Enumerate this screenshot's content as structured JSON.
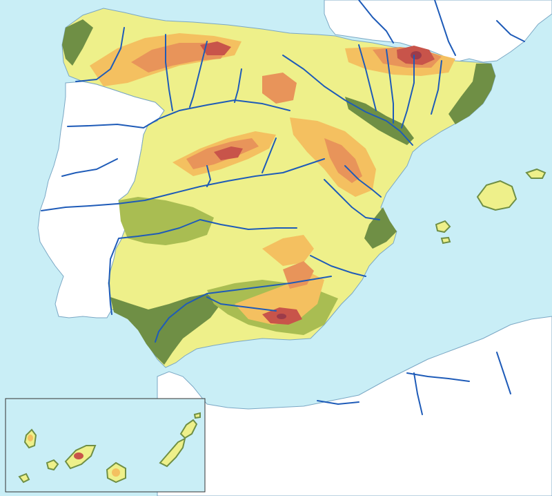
{
  "map": {
    "kind": "blank physical relief map",
    "colors": {
      "sea": "#c9eef6",
      "foreign_land": "#ffffff",
      "lowland": "#6f8f45",
      "low_plain": "#a9bd52",
      "plateau": "#eef08a",
      "hills": "#f4c060",
      "mountains": "#e8945a",
      "high_mountains": "#c8544a",
      "peaks": "#9c3b4a",
      "river": "#1e5bb8",
      "coast_outline": "#7aa7c4"
    },
    "inset": {
      "present": true
    }
  }
}
